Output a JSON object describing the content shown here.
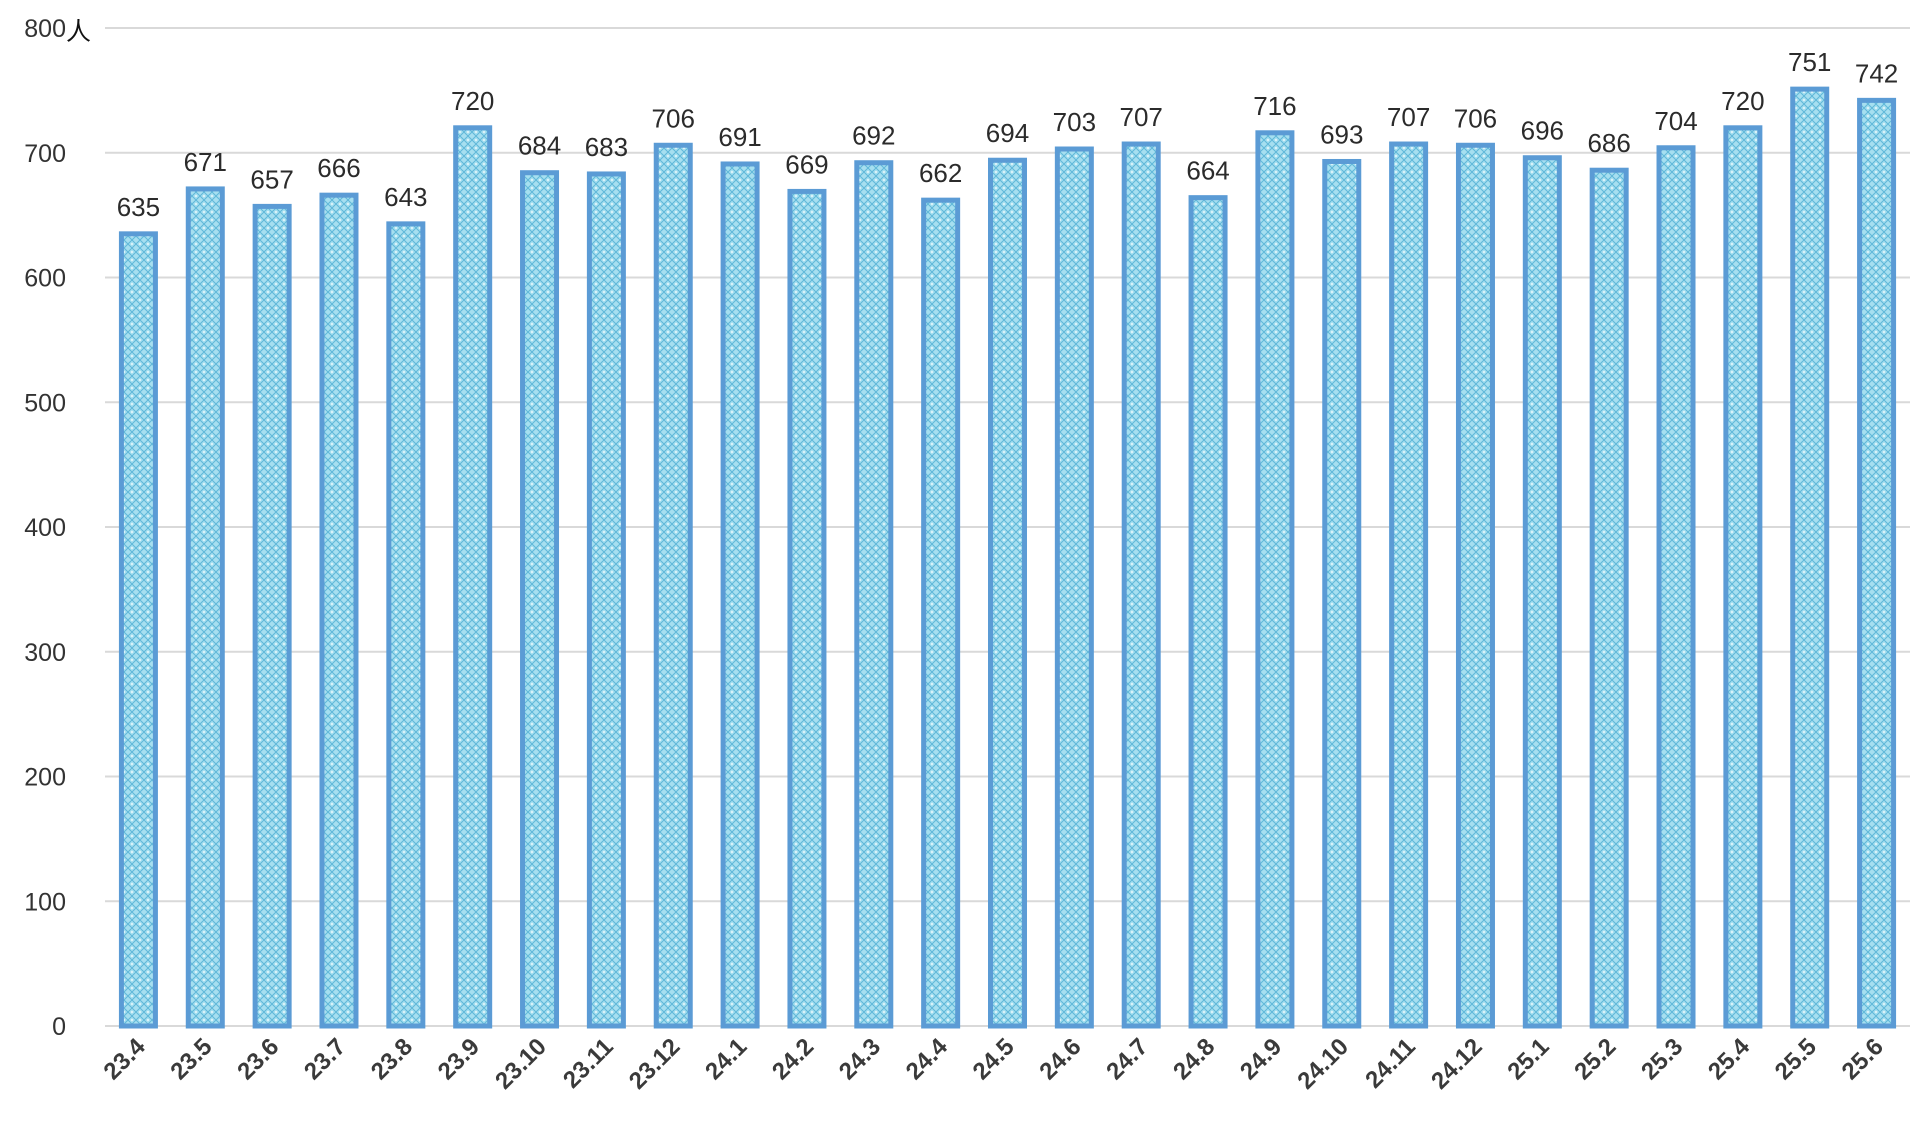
{
  "chart_data": {
    "type": "bar",
    "title": "",
    "xlabel": "",
    "ylabel": "",
    "y_unit": "人",
    "ylim": [
      0,
      800
    ],
    "yticks": [
      0,
      100,
      200,
      300,
      400,
      500,
      600,
      700,
      800
    ],
    "grid": true,
    "legend": "none",
    "colors": {
      "bar_fill": "#9fdcec",
      "bar_pattern": "#5bb4d6",
      "bar_border": "#5b9bd5",
      "grid": "#d9d9d9"
    },
    "categories": [
      "23.4",
      "23.5",
      "23.6",
      "23.7",
      "23.8",
      "23.9",
      "23.10",
      "23.11",
      "23.12",
      "24.1",
      "24.2",
      "24.3",
      "24.4",
      "24.5",
      "24.6",
      "24.7",
      "24.8",
      "24.9",
      "24.10",
      "24.11",
      "24.12",
      "25.1",
      "25.2",
      "25.3",
      "25.4",
      "25.5",
      "25.6"
    ],
    "values": [
      635,
      671,
      657,
      666,
      643,
      720,
      684,
      683,
      706,
      691,
      669,
      692,
      662,
      694,
      703,
      707,
      664,
      716,
      693,
      707,
      706,
      696,
      686,
      704,
      720,
      751,
      742
    ]
  }
}
